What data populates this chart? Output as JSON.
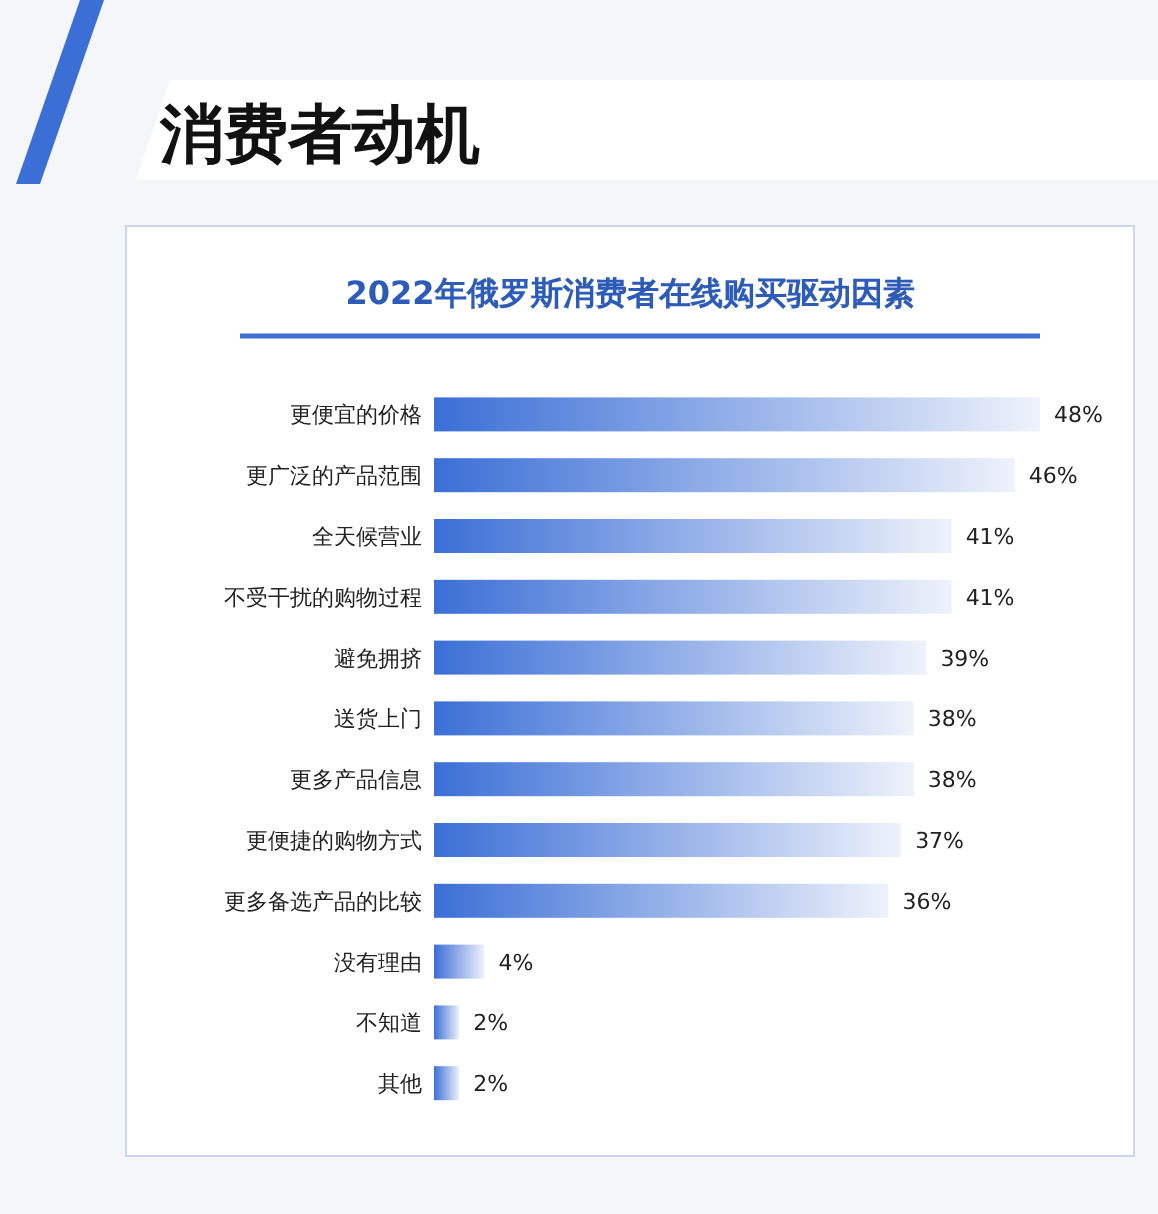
{
  "chart_data": {
    "type": "bar",
    "orientation": "horizontal",
    "title": "2022年俄罗斯消费者在线购买驱动因素",
    "annotations": [
      "消费者动机"
    ],
    "categories": [
      "更便宜的价格",
      "更广泛的产品范围",
      "全天候营业",
      "不受干扰的购物过程",
      "避免拥挤",
      "送货上门",
      "更多产品信息",
      "更便捷的购物方式",
      "更多备选产品的比较",
      "没有理由",
      "不知道",
      "其他"
    ],
    "values": [
      48,
      46,
      41,
      41,
      39,
      38,
      38,
      37,
      36,
      4,
      2,
      2
    ],
    "value_labels": [
      "48%",
      "46%",
      "41%",
      "41%",
      "39%",
      "38%",
      "38%",
      "37%",
      "36%",
      "4%",
      "2%",
      "2%"
    ],
    "color": "#3b6fd6"
  }
}
